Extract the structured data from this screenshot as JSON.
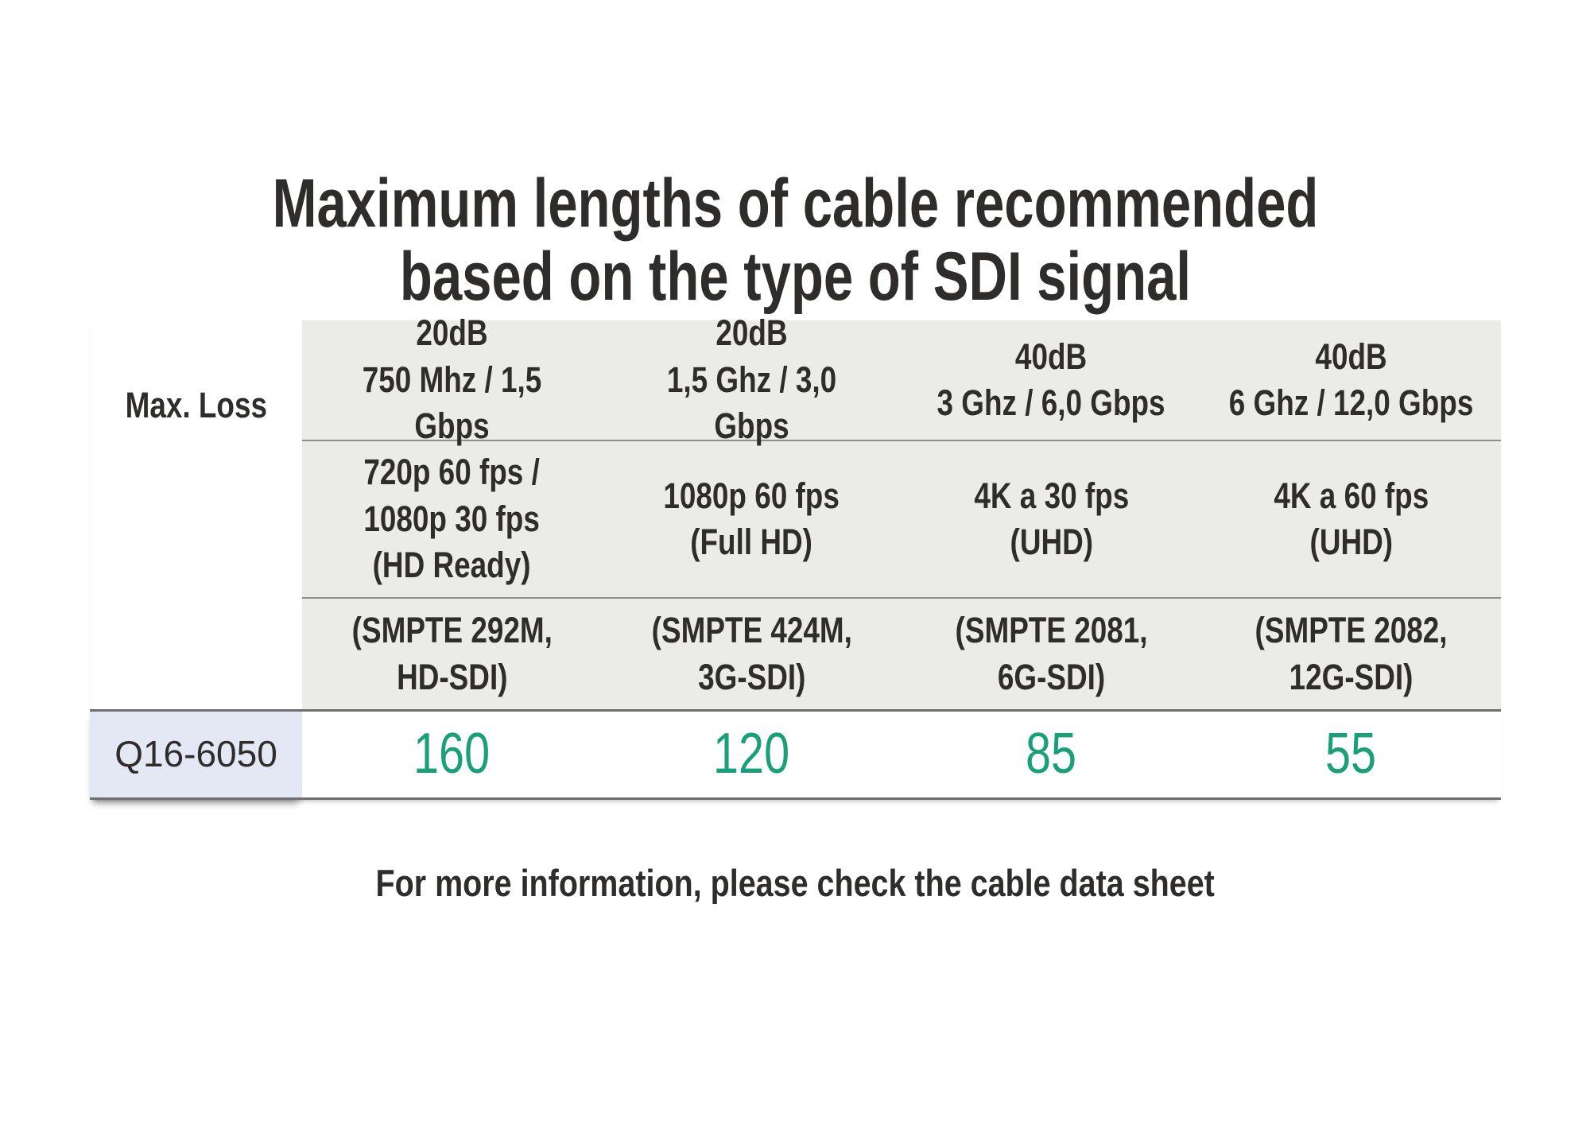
{
  "page": {
    "title_line1": "Maximum lengths of cable recommended",
    "title_line2": "based on the type of SDI signal",
    "footer_note": "For more information, please check the cable data sheet"
  },
  "table": {
    "corner_label": "Max. Loss",
    "columns": [
      {
        "attenuation": "20dB",
        "bandwidth": "750 Mhz / 1,5 Gbps",
        "formats": "720p 60 fps /\n1080p 30 fps\n(HD Ready)",
        "standard": "(SMPTE 292M,\nHD-SDI)"
      },
      {
        "attenuation": "20dB",
        "bandwidth": "1,5 Ghz / 3,0 Gbps",
        "formats": "1080p 60 fps\n(Full HD)",
        "standard": "(SMPTE 424M,\n3G-SDI)"
      },
      {
        "attenuation": "40dB",
        "bandwidth": "3 Ghz / 6,0 Gbps",
        "formats": "4K a 30 fps\n(UHD)",
        "standard": "(SMPTE 2081,\n6G-SDI)"
      },
      {
        "attenuation": "40dB",
        "bandwidth": "6 Ghz / 12,0 Gbps",
        "formats": "4K a 60 fps\n(UHD)",
        "standard": "(SMPTE 2082,\n12G-SDI)"
      }
    ],
    "rows": [
      {
        "product": "Q16-6050",
        "max_lengths": [
          "160",
          "120",
          "85",
          "55"
        ]
      }
    ]
  },
  "chart_data": {
    "type": "table",
    "title": "Maximum lengths of cable recommended based on the type of SDI signal",
    "row_header": "Max. Loss",
    "columns": [
      "20dB | 750 Mhz / 1,5 Gbps | 720p 60 fps / 1080p 30 fps (HD Ready) | (SMPTE 292M, HD-SDI)",
      "20dB | 1,5 Ghz / 3,0 Gbps | 1080p 60 fps (Full HD) | (SMPTE 424M, 3G-SDI)",
      "40dB | 3 Ghz / 6,0 Gbps | 4K a 30 fps (UHD) | (SMPTE 2081, 6G-SDI)",
      "40dB | 6 Ghz / 12,0 Gbps | 4K a 60 fps (UHD) | (SMPTE 2082, 12G-SDI)"
    ],
    "rows": [
      {
        "product": "Q16-6050",
        "values": [
          160,
          120,
          85,
          55
        ]
      }
    ]
  },
  "colors": {
    "text": "#2f2d2c",
    "header_bg": "#ebebe9",
    "product_bg": "#e4e7f4",
    "value_green": "#19a078",
    "thin_line": "#8e8e8c",
    "thick_line": "#6e6e6e",
    "background": "#ffffff"
  }
}
